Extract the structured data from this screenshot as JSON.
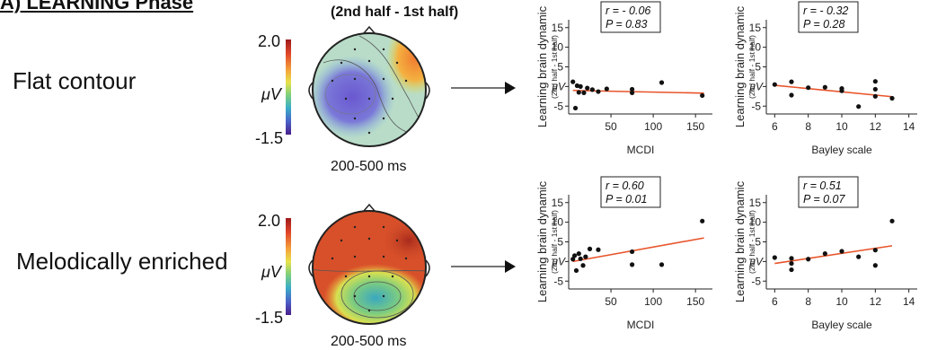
{
  "panel_title": "A) LEARNING Phase",
  "topo_header": "(2nd half - 1st half)",
  "conditions": [
    {
      "label": "Flat contour",
      "colorbar_max": "2.0",
      "colorbar_unit": "μV",
      "colorbar_min": "-1.5",
      "time_window": "200-500 ms"
    },
    {
      "label": "Melodically enriched",
      "colorbar_max": "2.0",
      "colorbar_unit": "μV",
      "colorbar_min": "-1.5",
      "time_window": "200-500 ms"
    }
  ],
  "colors": {
    "regression_line": "#e8542a",
    "points": "#111111"
  },
  "chart_data": [
    {
      "type": "scatter",
      "ylabel": "Learning brain dynamic",
      "ylabel_sub": "(2nd half - 1st half)",
      "y_unit_tick": "μV",
      "xlabel": "MCDI",
      "xlim": [
        0,
        170
      ],
      "ylim": [
        -7,
        17
      ],
      "xticks": [
        50,
        100,
        150
      ],
      "yticks": [
        -5,
        5,
        10,
        15
      ],
      "stats": {
        "r": "r = - 0.06",
        "P": "P = 0.83"
      },
      "x": [
        5,
        8,
        10,
        12,
        14,
        18,
        22,
        28,
        35,
        45,
        75,
        75,
        110,
        158
      ],
      "y": [
        1.2,
        -5.5,
        0.2,
        -1.5,
        0.0,
        -1.6,
        -0.4,
        -0.8,
        -1.3,
        -0.6,
        -0.7,
        -1.6,
        1.0,
        -2.3
      ],
      "fit": {
        "x": [
          5,
          160
        ],
        "y": [
          -1.0,
          -1.7
        ]
      }
    },
    {
      "type": "scatter",
      "ylabel": "Learning brain dynamic",
      "ylabel_sub": "(2nd half - 1st half)",
      "y_unit_tick": "μV",
      "xlabel": "Bayley scale",
      "xlim": [
        5.5,
        14.5
      ],
      "ylim": [
        -7,
        17
      ],
      "xticks": [
        6,
        8,
        10,
        12,
        14
      ],
      "yticks": [
        -5,
        5,
        10,
        15
      ],
      "stats": {
        "r": "r = - 0.32",
        "P": "P = 0.28"
      },
      "x": [
        6,
        7,
        7,
        8,
        9,
        10,
        10,
        11,
        12,
        12,
        12,
        13
      ],
      "y": [
        0.5,
        1.2,
        -2.2,
        -0.3,
        -0.2,
        -1.1,
        -0.5,
        -5.1,
        1.3,
        -2.5,
        -0.7,
        -3.0
      ],
      "fit": {
        "x": [
          6,
          13
        ],
        "y": [
          0.3,
          -2.6
        ]
      }
    },
    {
      "type": "scatter",
      "ylabel": "Learning brain dynamic",
      "ylabel_sub": "(2nd half - 1st half)",
      "y_unit_tick": "μV",
      "xlabel": "MCDI",
      "xlim": [
        0,
        170
      ],
      "ylim": [
        -7,
        17
      ],
      "xticks": [
        50,
        100,
        150
      ],
      "yticks": [
        -5,
        5,
        10,
        15
      ],
      "stats": {
        "r": "r = 0.60",
        "P": "P = 0.01"
      },
      "x": [
        5,
        7,
        9,
        12,
        14,
        17,
        20,
        25,
        35,
        75,
        75,
        110,
        158
      ],
      "y": [
        0.6,
        1.5,
        -2.3,
        2.0,
        0.7,
        -1.0,
        1.2,
        3.2,
        3.0,
        2.5,
        -0.8,
        -0.8,
        10.3
      ],
      "fit": {
        "x": [
          5,
          160
        ],
        "y": [
          0.0,
          6.0
        ]
      }
    },
    {
      "type": "scatter",
      "ylabel": "Learning brain dynamic",
      "ylabel_sub": "(2nd half - 1st half)",
      "y_unit_tick": "μV",
      "xlabel": "Bayley scale",
      "xlim": [
        5.5,
        14.5
      ],
      "ylim": [
        -7,
        17
      ],
      "xticks": [
        6,
        8,
        10,
        12,
        14
      ],
      "yticks": [
        -5,
        5,
        10,
        15
      ],
      "stats": {
        "r": "r = 0.51",
        "P": "P = 0.07"
      },
      "x": [
        6,
        7,
        7,
        7,
        8,
        9,
        10,
        11,
        12,
        12,
        13
      ],
      "y": [
        1.0,
        0.8,
        -0.5,
        -2.1,
        0.6,
        2.0,
        2.6,
        1.2,
        2.9,
        -1.0,
        10.3
      ],
      "fit": {
        "x": [
          6,
          13
        ],
        "y": [
          -0.5,
          4.0
        ]
      }
    }
  ]
}
